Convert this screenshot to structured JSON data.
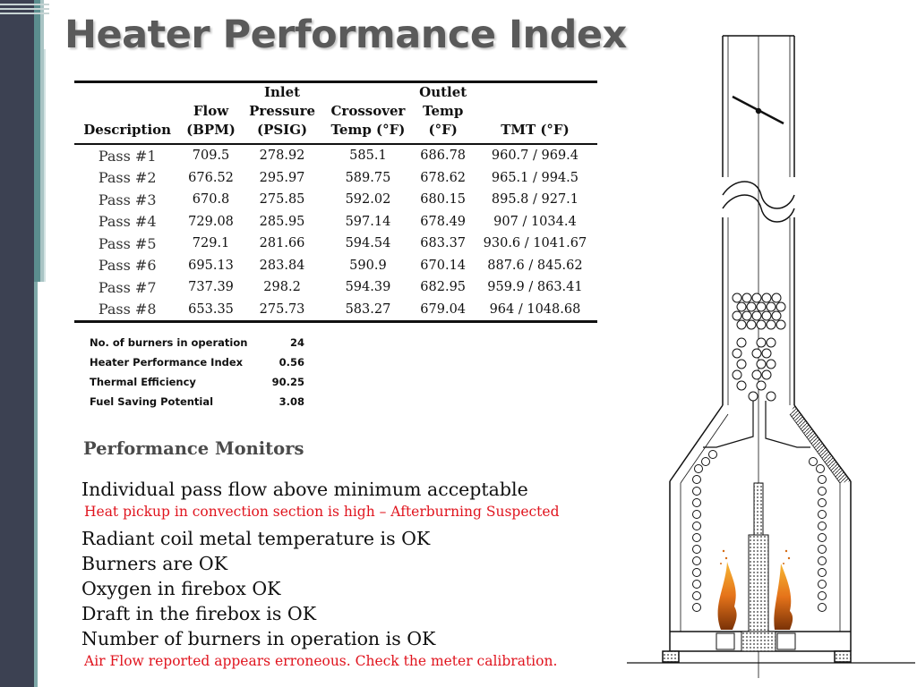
{
  "title": "Heater Performance Index",
  "table": {
    "headers": [
      {
        "lines": [
          "Description"
        ]
      },
      {
        "lines": [
          "Flow",
          "(BPM)"
        ]
      },
      {
        "lines": [
          "Inlet",
          "Pressure",
          "(PSIG)"
        ]
      },
      {
        "lines": [
          "Crossover",
          "Temp (°F)"
        ]
      },
      {
        "lines": [
          "Outlet",
          "Temp",
          "(°F)"
        ]
      },
      {
        "lines": [
          "TMT (°F)"
        ]
      }
    ],
    "rows": [
      [
        "Pass #1",
        "709.5",
        "278.92",
        "585.1",
        "686.78",
        "960.7 / 969.4"
      ],
      [
        "Pass #2",
        "676.52",
        "295.97",
        "589.75",
        "678.62",
        "965.1 / 994.5"
      ],
      [
        "Pass #3",
        "670.8",
        "275.85",
        "592.02",
        "680.15",
        "895.8 / 927.1"
      ],
      [
        "Pass #4",
        "729.08",
        "285.95",
        "597.14",
        "678.49",
        "907 / 1034.4"
      ],
      [
        "Pass #5",
        "729.1",
        "281.66",
        "594.54",
        "683.37",
        "930.6 / 1041.67"
      ],
      [
        "Pass #6",
        "695.13",
        "283.84",
        "590.9",
        "670.14",
        "887.6 / 845.62"
      ],
      [
        "Pass #7",
        "737.39",
        "298.2",
        "594.39",
        "682.95",
        "959.9 / 863.41"
      ],
      [
        "Pass #8",
        "653.35",
        "275.73",
        "583.27",
        "679.04",
        "964 / 1048.68"
      ]
    ]
  },
  "summary": [
    {
      "label": "No. of burners  in operation",
      "value": "24"
    },
    {
      "label": "Heater Performance  Index",
      "value": "0.56"
    },
    {
      "label": "Thermal Efficiency",
      "value": "90.25"
    },
    {
      "label": "Fuel Saving Potential",
      "value": "3.08"
    }
  ],
  "monitors": {
    "heading": "Performance Monitors",
    "items": [
      {
        "text": "Individual pass flow above minimum acceptable",
        "kind": "status"
      },
      {
        "text": "Heat pickup in convection section is high – Afterburning Suspected",
        "kind": "warning"
      },
      {
        "text": "Radiant coil metal temperature is OK",
        "kind": "status"
      },
      {
        "text": "Burners are OK",
        "kind": "status"
      },
      {
        "text": "Oxygen in firebox OK",
        "kind": "status"
      },
      {
        "text": "Draft in the firebox is OK",
        "kind": "status"
      },
      {
        "text": "Number of burners in operation is OK",
        "kind": "status"
      },
      {
        "text": "Air Flow reported appears erroneous. Check the meter calibration.",
        "kind": "warning"
      }
    ]
  },
  "colors": {
    "warning": "#e0141e",
    "sidebar": "#3c4152",
    "accent_teal": "#5b8d8e",
    "title": "#5a5a5a"
  },
  "icons": {
    "diagram": "fired-heater-schematic"
  }
}
